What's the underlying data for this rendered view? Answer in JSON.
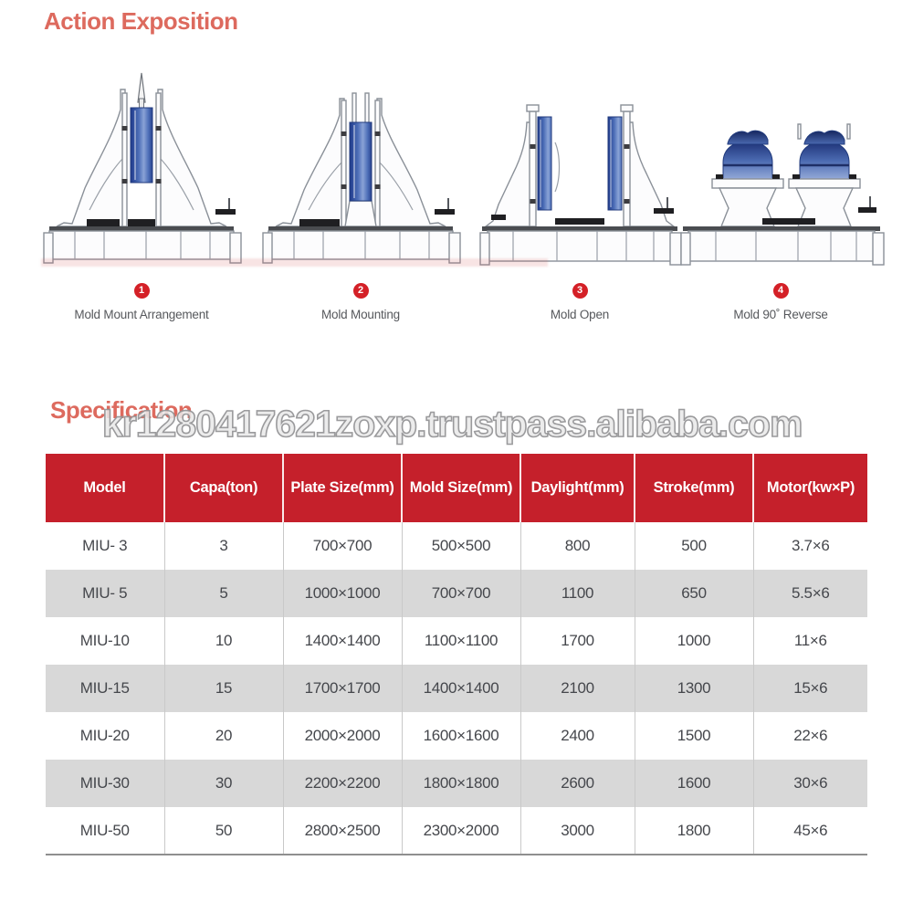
{
  "page": {
    "section1_title": "Action Exposition",
    "section2_title": "Specification",
    "watermark": "kr1280417621zoxp.trustpass.alibaba.com"
  },
  "figures": [
    {
      "num": "1",
      "label": "Mold Mount  Arrangement",
      "icon": "mold-mount-arrangement-diagram"
    },
    {
      "num": "2",
      "label": "Mold Mounting",
      "icon": "mold-mounting-diagram"
    },
    {
      "num": "3",
      "label": "Mold Open",
      "icon": "mold-open-diagram"
    },
    {
      "num": "4",
      "label": "Mold 90˚  Reverse",
      "icon": "mold-90-reverse-diagram"
    }
  ],
  "spec_table": {
    "headers": [
      "Model",
      "Capa(ton)",
      "Plate Size(mm)",
      "Mold Size(mm)",
      "Daylight(mm)",
      "Stroke(mm)",
      "Motor(kw×P)"
    ],
    "rows": [
      [
        "MIU- 3",
        "3",
        "700×700",
        "500×500",
        "800",
        "500",
        "3.7×6"
      ],
      [
        "MIU- 5",
        "5",
        "1000×1000",
        "700×700",
        "1100",
        "650",
        "5.5×6"
      ],
      [
        "MIU-10",
        "10",
        "1400×1400",
        "1100×1100",
        "1700",
        "1000",
        "11×6"
      ],
      [
        "MIU-15",
        "15",
        "1700×1700",
        "1400×1400",
        "2100",
        "1300",
        "15×6"
      ],
      [
        "MIU-20",
        "20",
        "2000×2000",
        "1600×1600",
        "2400",
        "1500",
        "22×6"
      ],
      [
        "MIU-30",
        "30",
        "2200×2200",
        "1800×1800",
        "2600",
        "1600",
        "30×6"
      ],
      [
        "MIU-50",
        "50",
        "2800×2500",
        "2300×2000",
        "3000",
        "1800",
        "45×6"
      ]
    ]
  },
  "colors": {
    "section_title": "#dd6a5e",
    "table_header_bg": "#c5202b",
    "badge_red": "#d42027",
    "row_stripe": "#d8d8d8",
    "body_text": "#45474c",
    "mold_blue_dark": "#1f3a8c",
    "mold_blue_light": "#8aa3d6"
  }
}
